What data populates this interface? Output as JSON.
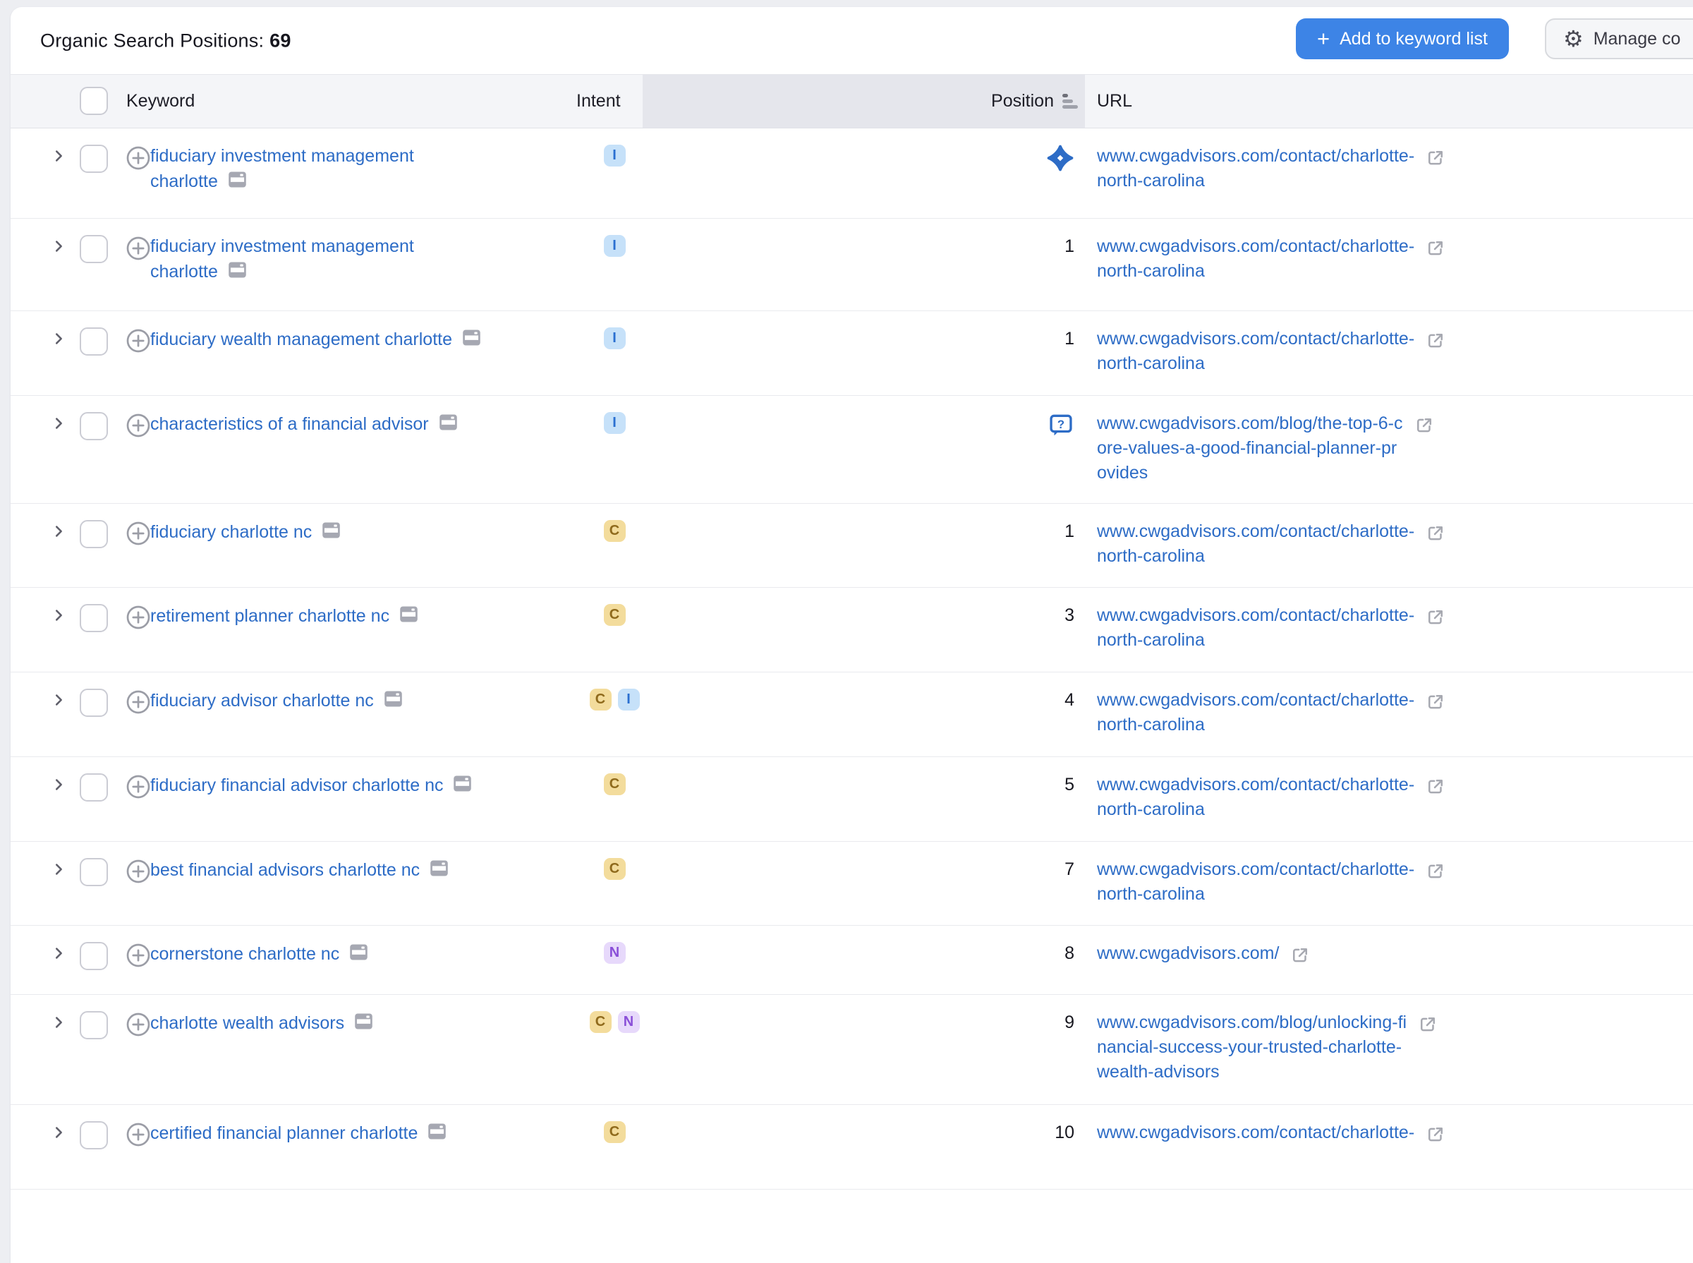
{
  "page": {
    "title_label": "Organic Search Positions:",
    "title_count": "69"
  },
  "toolbar": {
    "add_button": {
      "plus": "+",
      "label": "Add to keyword list"
    },
    "manage_button": {
      "label": "Manage co",
      "icon": "gear-icon"
    }
  },
  "table": {
    "headers": {
      "keyword": "Keyword",
      "intent": "Intent",
      "position": "Position",
      "url": "URL"
    },
    "sorted_column": "Position",
    "intent_legend": {
      "I": {
        "bg": "#c6e1f9",
        "fg": "#2a6fd0"
      },
      "C": {
        "bg": "#f3dc9c",
        "fg": "#8f6a1c"
      },
      "N": {
        "bg": "#e7d9fb",
        "fg": "#8a4fd8"
      }
    },
    "rows": [
      {
        "keyword_lines": [
          "fiduciary investment management",
          "charlotte"
        ],
        "intents": [
          "I"
        ],
        "position": "",
        "position_icon": "ai-overview-icon",
        "url_lines": [
          "www.cwgadvisors.com/contact/charlotte-",
          "north-carolina"
        ]
      },
      {
        "keyword_lines": [
          "fiduciary investment management",
          "charlotte"
        ],
        "intents": [
          "I"
        ],
        "position": "1",
        "position_icon": "",
        "url_lines": [
          "www.cwgadvisors.com/contact/charlotte-",
          "north-carolina"
        ]
      },
      {
        "keyword_lines": [
          "fiduciary wealth management charlotte"
        ],
        "intents": [
          "I"
        ],
        "position": "1",
        "position_icon": "",
        "url_lines": [
          "www.cwgadvisors.com/contact/charlotte-",
          "north-carolina"
        ]
      },
      {
        "keyword_lines": [
          "characteristics of a financial advisor"
        ],
        "intents": [
          "I"
        ],
        "position": "",
        "position_icon": "people-also-ask-icon",
        "url_lines": [
          "www.cwgadvisors.com/blog/the-top-6-c",
          "ore-values-a-good-financial-planner-pr",
          "ovides"
        ]
      },
      {
        "keyword_lines": [
          "fiduciary charlotte nc"
        ],
        "intents": [
          "C"
        ],
        "position": "1",
        "position_icon": "",
        "url_lines": [
          "www.cwgadvisors.com/contact/charlotte-",
          "north-carolina"
        ]
      },
      {
        "keyword_lines": [
          "retirement planner charlotte nc"
        ],
        "intents": [
          "C"
        ],
        "position": "3",
        "position_icon": "",
        "url_lines": [
          "www.cwgadvisors.com/contact/charlotte-",
          "north-carolina"
        ]
      },
      {
        "keyword_lines": [
          "fiduciary advisor charlotte nc"
        ],
        "intents": [
          "C",
          "I"
        ],
        "position": "4",
        "position_icon": "",
        "url_lines": [
          "www.cwgadvisors.com/contact/charlotte-",
          "north-carolina"
        ]
      },
      {
        "keyword_lines": [
          "fiduciary financial advisor charlotte nc"
        ],
        "intents": [
          "C"
        ],
        "position": "5",
        "position_icon": "",
        "url_lines": [
          "www.cwgadvisors.com/contact/charlotte-",
          "north-carolina"
        ]
      },
      {
        "keyword_lines": [
          "best financial advisors charlotte nc"
        ],
        "intents": [
          "C"
        ],
        "position": "7",
        "position_icon": "",
        "url_lines": [
          "www.cwgadvisors.com/contact/charlotte-",
          "north-carolina"
        ]
      },
      {
        "keyword_lines": [
          "cornerstone charlotte nc"
        ],
        "intents": [
          "N"
        ],
        "position": "8",
        "position_icon": "",
        "url_lines": [
          "www.cwgadvisors.com/"
        ]
      },
      {
        "keyword_lines": [
          "charlotte wealth advisors"
        ],
        "intents": [
          "C",
          "N"
        ],
        "position": "9",
        "position_icon": "",
        "url_lines": [
          "www.cwgadvisors.com/blog/unlocking-fi",
          "nancial-success-your-trusted-charlotte-",
          "wealth-advisors"
        ]
      },
      {
        "keyword_lines": [
          "certified financial planner charlotte"
        ],
        "intents": [
          "C"
        ],
        "position": "10",
        "position_icon": "",
        "url_lines": [
          "www.cwgadvisors.com/contact/charlotte-"
        ]
      }
    ]
  },
  "colors": {
    "accent_blue": "#3d84e6",
    "link_blue": "#2d6cc6",
    "page_bg": "#edeef2",
    "header_row_bg": "#f4f5f8",
    "sorted_column_bg": "#e5e6ec",
    "row_border": "#e9eaee"
  }
}
